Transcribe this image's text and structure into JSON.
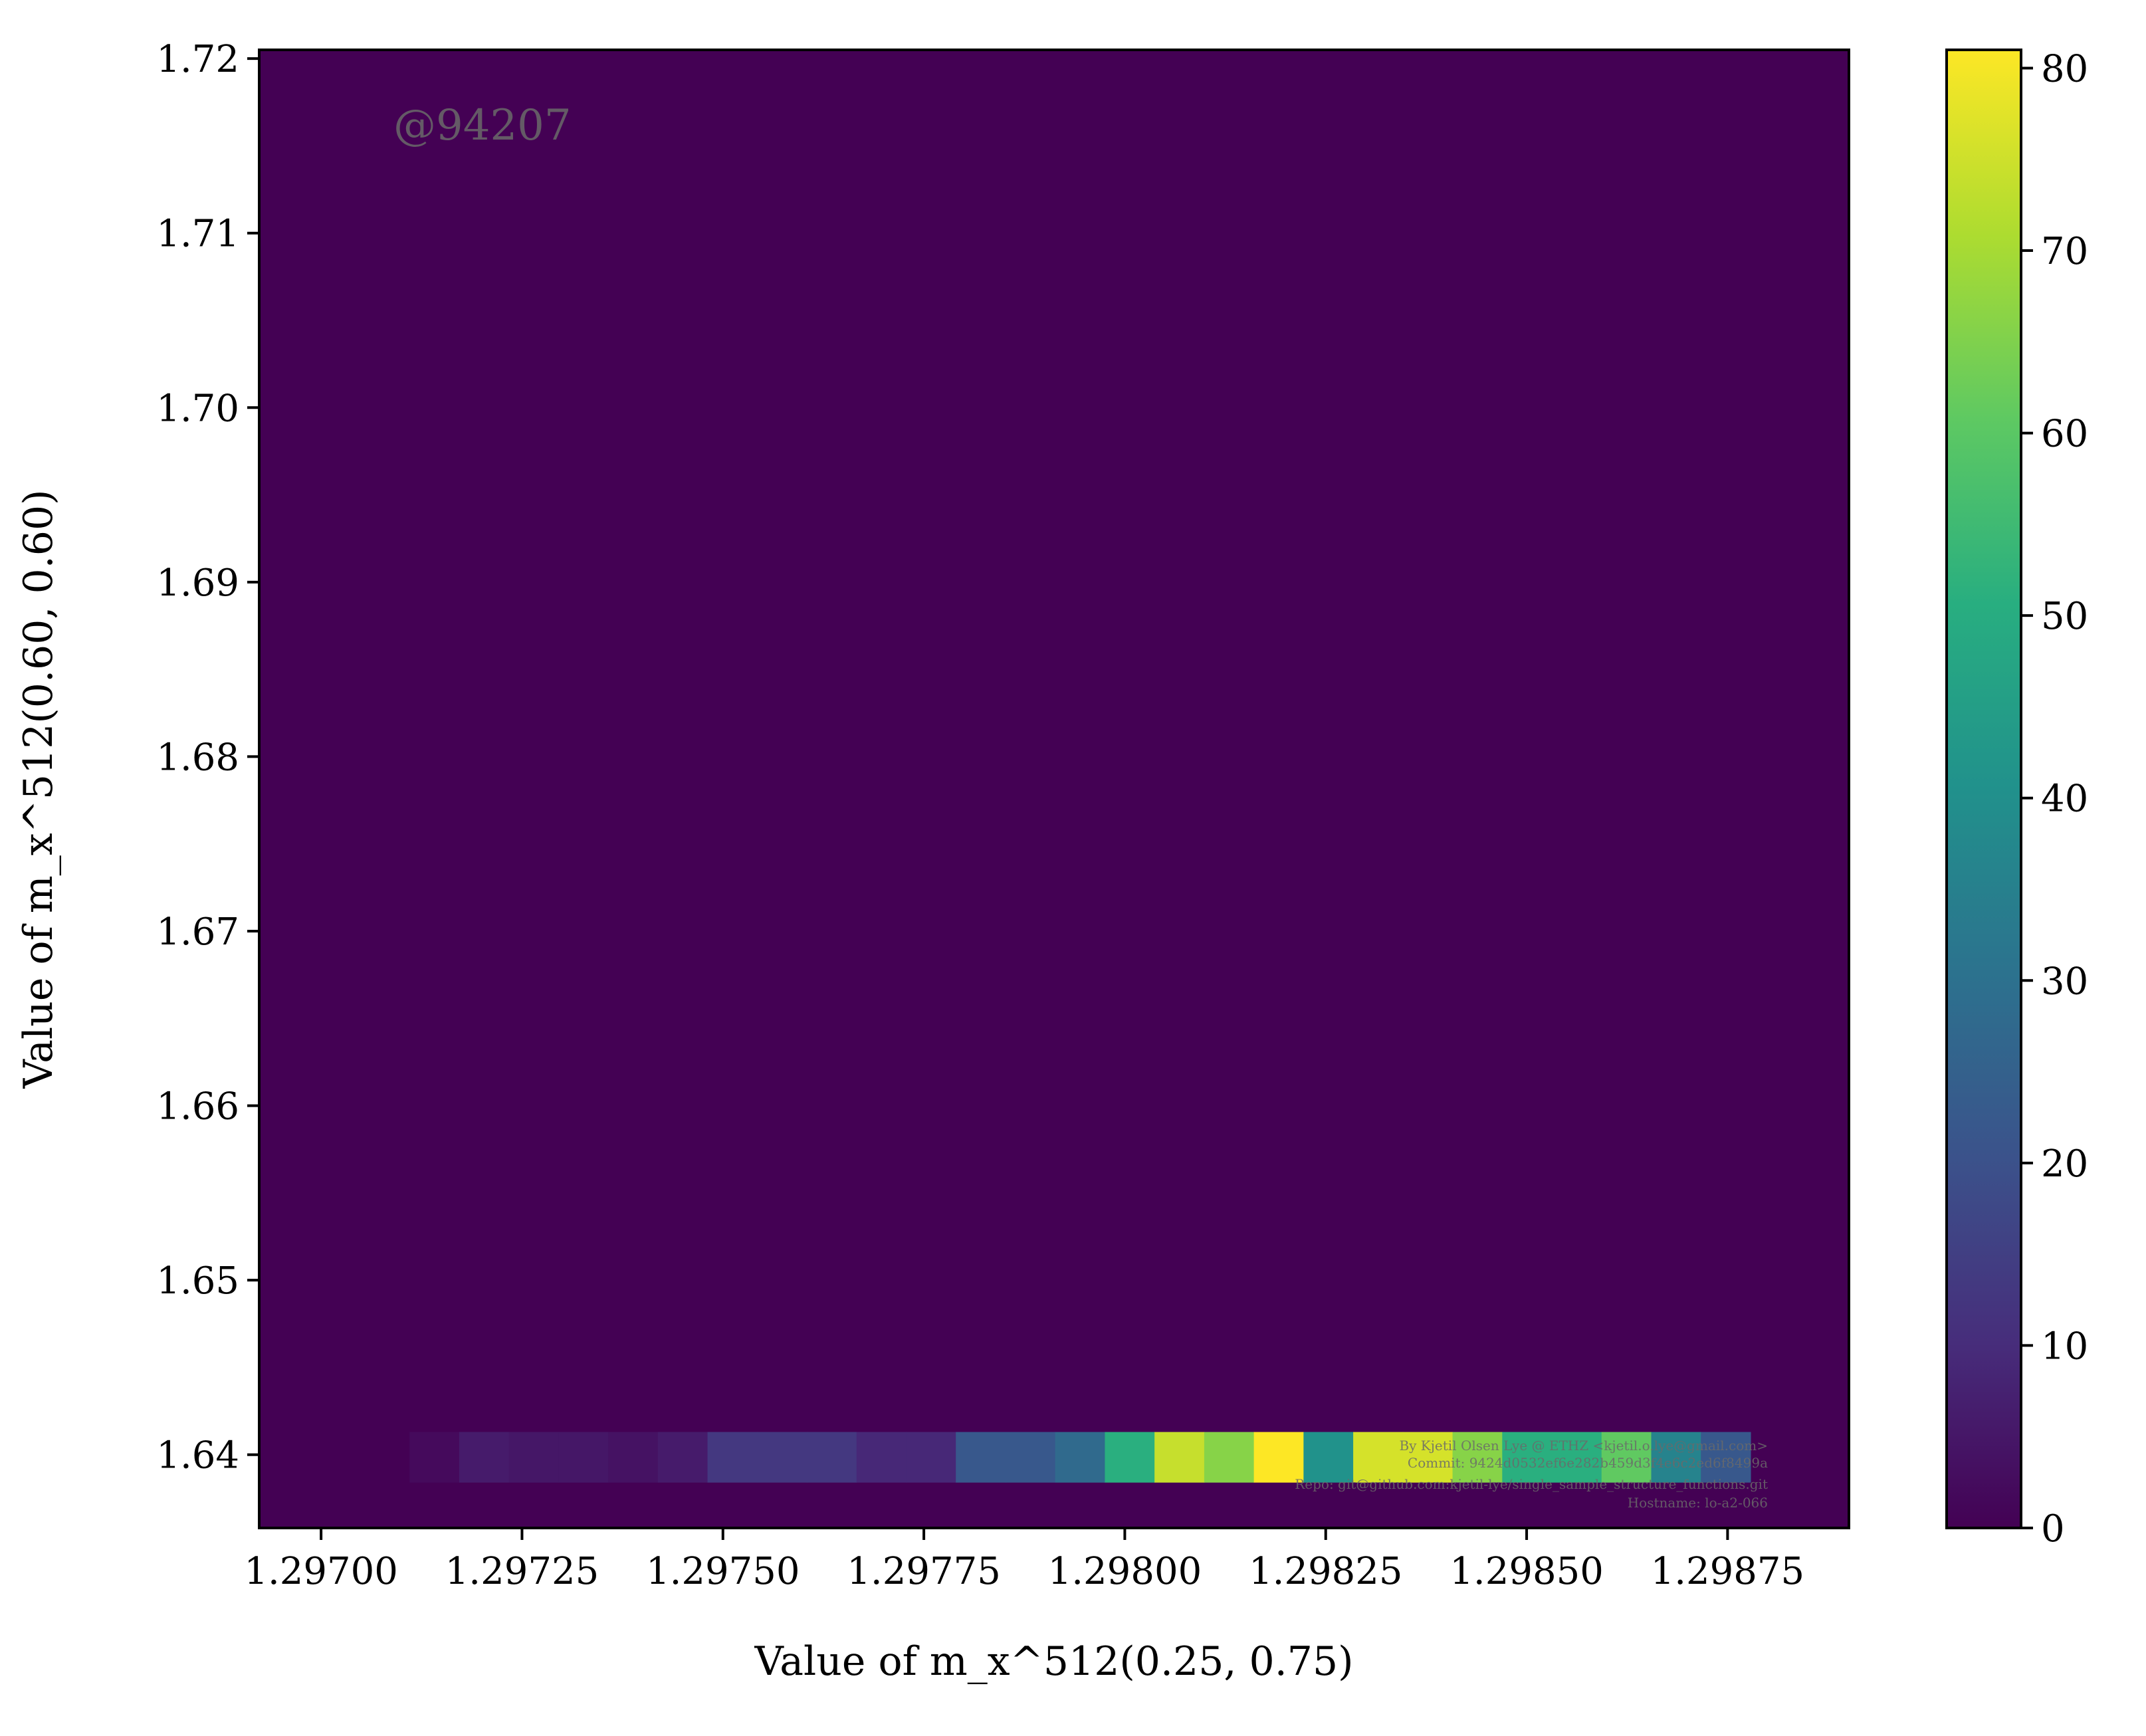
{
  "chart_data": {
    "type": "heatmap",
    "title": "",
    "xlabel": "Value of m_x^512(0.25, 0.75)",
    "ylabel": "Value of m_x^512(0.60, 0.60)",
    "xlim": [
      1.296923,
      1.298901
    ],
    "ylim": [
      1.6358,
      1.7205
    ],
    "x_ticks": [
      {
        "value": 1.297,
        "label": "1.29700"
      },
      {
        "value": 1.29725,
        "label": "1.29725"
      },
      {
        "value": 1.2975,
        "label": "1.29750"
      },
      {
        "value": 1.29775,
        "label": "1.29775"
      },
      {
        "value": 1.298,
        "label": "1.29800"
      },
      {
        "value": 1.29825,
        "label": "1.29825"
      },
      {
        "value": 1.2985,
        "label": "1.29850"
      },
      {
        "value": 1.29875,
        "label": "1.29875"
      }
    ],
    "y_ticks": [
      {
        "value": 1.64,
        "label": "1.64"
      },
      {
        "value": 1.65,
        "label": "1.65"
      },
      {
        "value": 1.66,
        "label": "1.66"
      },
      {
        "value": 1.67,
        "label": "1.67"
      },
      {
        "value": 1.68,
        "label": "1.68"
      },
      {
        "value": 1.69,
        "label": "1.69"
      },
      {
        "value": 1.7,
        "label": "1.70"
      },
      {
        "value": 1.71,
        "label": "1.71"
      },
      {
        "value": 1.72,
        "label": "1.72"
      }
    ],
    "colorbar": {
      "colormap": "viridis",
      "min": 0,
      "max": 81,
      "ticks": [
        {
          "value": 0,
          "label": "0"
        },
        {
          "value": 10,
          "label": "10"
        },
        {
          "value": 20,
          "label": "20"
        },
        {
          "value": 30,
          "label": "30"
        },
        {
          "value": 40,
          "label": "40"
        },
        {
          "value": 50,
          "label": "50"
        },
        {
          "value": 60,
          "label": "60"
        },
        {
          "value": 70,
          "label": "70"
        },
        {
          "value": 80,
          "label": "80"
        }
      ]
    },
    "background_count": 0,
    "row": {
      "y_range": [
        1.6384,
        1.6413
      ],
      "x_start": 1.29711,
      "bin_width": 6.18e-05,
      "counts": [
        2,
        6,
        5,
        5,
        4,
        6,
        13,
        13,
        13,
        9,
        9,
        22,
        22,
        28,
        51,
        74,
        66,
        81,
        41,
        76,
        76,
        66,
        51,
        51,
        61,
        36,
        22
      ]
    }
  },
  "watermarks": {
    "run_id": "@94207",
    "credit_lines": [
      "By Kjetil Olsen Lye @ ETHZ <kjetil.o.lye@gmail.com>",
      "Commit: 9424d0532ef6e282b459d3f4e6c2ed6f8499a",
      "Repo: git@github.com:kjetil-lye/single_sample_structure_functions.git",
      "Hostname: lo-a2-066"
    ]
  }
}
